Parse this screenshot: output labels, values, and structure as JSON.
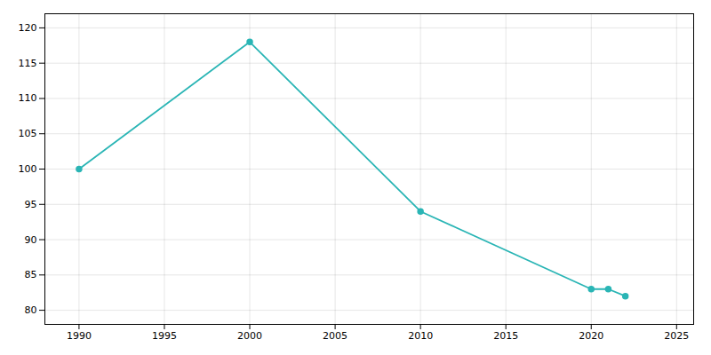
{
  "chart_data": {
    "type": "line",
    "x": [
      1990,
      2000,
      2010,
      2020,
      2021,
      2022
    ],
    "values": [
      100,
      118,
      94,
      83,
      83,
      82
    ],
    "color": "#2ab5b5",
    "marker": "circle",
    "xlim": [
      1988,
      2026
    ],
    "xticks": [
      1990,
      1995,
      2000,
      2005,
      2010,
      2015,
      2020,
      2025
    ],
    "ylim": [
      78,
      122
    ],
    "yticks": [
      80,
      85,
      90,
      95,
      100,
      105,
      110,
      115,
      120
    ],
    "grid": true
  }
}
